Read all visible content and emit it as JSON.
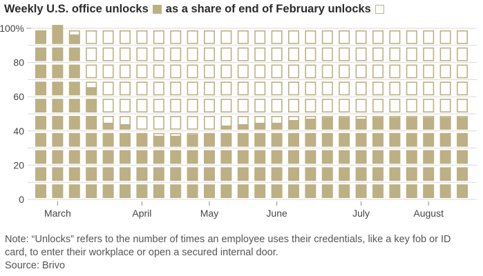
{
  "header": {
    "title_part1": "Weekly U.S. office unlocks",
    "title_part2": "as a share of end of February unlocks"
  },
  "footer": {
    "note": "Note: “Unlocks” refers to the number of times an employee uses their credentials, like a key fob or ID card, to enter their workplace or open a secured internal door.",
    "source": "Source: Brivo"
  },
  "colors": {
    "fill": "#bcb084",
    "grid_line": "#d9d9d9",
    "text": "#444444"
  },
  "chart_data": {
    "type": "bar",
    "title": "Weekly U.S. office unlocks as a share of end of February unlocks",
    "ylim": [
      0,
      100
    ],
    "y_ticks": [
      0,
      20,
      40,
      60,
      80,
      100
    ],
    "y_tick_labels": [
      "0",
      "20",
      "40",
      "60",
      "80",
      "100%"
    ],
    "x_tick_labels": [
      {
        "label": "March",
        "week_index": 1
      },
      {
        "label": "April",
        "week_index": 6
      },
      {
        "label": "May",
        "week_index": 10
      },
      {
        "label": "June",
        "week_index": 14
      },
      {
        "label": "July",
        "week_index": 19
      },
      {
        "label": "August",
        "week_index": 23
      }
    ],
    "series": [
      {
        "values": [
          100,
          102,
          97,
          66,
          45,
          44,
          40,
          38,
          38,
          39,
          40,
          43,
          44,
          45,
          45,
          47,
          48,
          49,
          49,
          48,
          49,
          49,
          49,
          49,
          49,
          49
        ]
      }
    ]
  }
}
